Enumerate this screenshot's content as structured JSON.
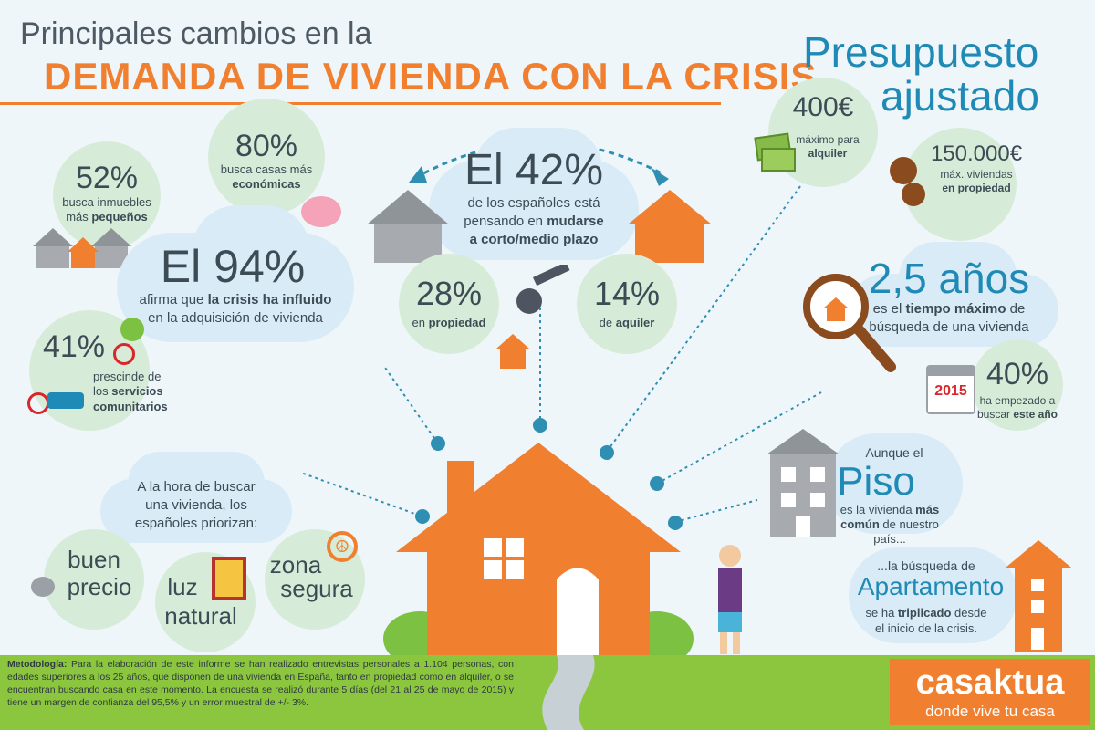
{
  "header": {
    "line1": "Principales cambios en la",
    "line2": "DEMANDA DE VIVIENDA CON LA CRISIS"
  },
  "budget": {
    "title_line1": "Presupuesto",
    "title_line2": "ajustado",
    "rent_value": "400€",
    "rent_desc1": "máximo para",
    "rent_desc2": "alquiler",
    "buy_value": "150.000€",
    "buy_desc1": "máx. viviendas",
    "buy_desc2": "en propiedad"
  },
  "stat52": {
    "value": "52%",
    "desc1": "busca inmuebles",
    "desc2": "más ",
    "desc2b": "pequeños"
  },
  "stat80": {
    "value": "80%",
    "desc1": "busca casas más",
    "desc2": "económicas"
  },
  "stat42": {
    "value": "El 42%",
    "desc1": "de los españoles está",
    "desc2a": "pensando en ",
    "desc2b": "mudarse",
    "desc3": "a corto/medio plazo"
  },
  "stat28": {
    "value": "28%",
    "desc_a": "en ",
    "desc_b": "propiedad"
  },
  "stat14": {
    "value": "14%",
    "desc_a": "de ",
    "desc_b": "aquiler"
  },
  "stat94": {
    "value": "El 94%",
    "desc1a": "afirma que ",
    "desc1b": "la crisis ha influido",
    "desc2": "en la adquisición de vivienda"
  },
  "stat41": {
    "value": "41%",
    "desc1": "prescinde de",
    "desc2": "los ",
    "desc2b": "servicios",
    "desc3": "comunitarios"
  },
  "search_time": {
    "value": "2,5 años",
    "desc1a": "es el ",
    "desc1b": "tiempo máximo",
    "desc1c": " de",
    "desc2": "búsqueda de una vivienda"
  },
  "stat40": {
    "value": "40%",
    "desc1": "ha empezado a",
    "desc2a": "buscar ",
    "desc2b": "este año",
    "calendar_year": "2015"
  },
  "piso": {
    "pre": "Aunque el",
    "word": "Piso",
    "desc1": "es la vivienda ",
    "desc1b": "más",
    "desc2b": "común",
    "desc2": " de nuestro país..."
  },
  "apartamento": {
    "pre": "...la búsqueda de",
    "word": "Apartamento",
    "desc1a": "se ha ",
    "desc1b": "triplicado",
    "desc1c": " desde",
    "desc2": "el inicio de la crisis."
  },
  "priorities": {
    "intro1": "A la hora de buscar",
    "intro2": "una vivienda, los",
    "intro3": "españoles priorizan:",
    "item1a": "buen",
    "item1b": "precio",
    "item2a": "luz",
    "item2b": "natural",
    "item3a": "zona",
    "item3b": "segura"
  },
  "footer": {
    "method_label": "Metodología:",
    "method_text": "Para la elaboración de este informe se han realizado entrevistas personales a 1.104 personas, con edades superiores a los 25 años, que disponen de una vivienda en España, tanto en propiedad como en alquiler, o se encuentran buscando casa en este momento. La encuesta se realizó durante 5 días (del 21 al 25 de mayo de 2015) y tiene un margen de confianza del 95,5% y un error muestral de +/- 3%.",
    "brand": "casaktua",
    "tagline": "donde vive tu casa"
  },
  "colors": {
    "orange": "#f07f2f",
    "blue": "#1f8ab5",
    "green": "#7cc142",
    "cloud": "#d9ebf6",
    "bubble": "#d7ecd8"
  }
}
